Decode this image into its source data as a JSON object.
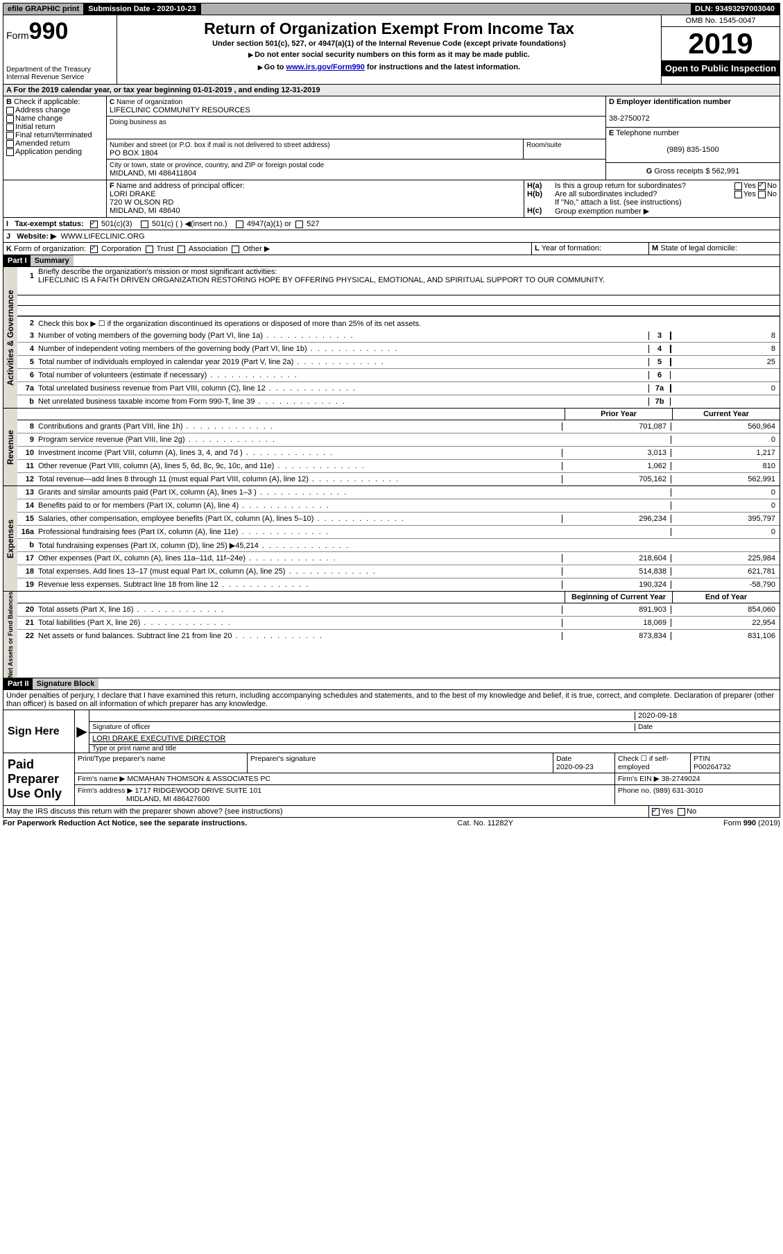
{
  "topbar": {
    "efile": "efile GRAPHIC print",
    "sub_label": "Submission Date - ",
    "sub_date": "2020-10-23",
    "dln_label": "DLN: ",
    "dln": "93493297003040"
  },
  "header": {
    "form_word": "Form",
    "form_num": "990",
    "dept1": "Department of the Treasury",
    "dept2": "Internal Revenue Service",
    "title": "Return of Organization Exempt From Income Tax",
    "subtitle": "Under section 501(c), 527, or 4947(a)(1) of the Internal Revenue Code (except private foundations)",
    "note1": "Do not enter social security numbers on this form as it may be made public.",
    "note2_pre": "Go to ",
    "note2_link": "www.irs.gov/Form990",
    "note2_post": " for instructions and the latest information.",
    "omb": "OMB No. 1545-0047",
    "year": "2019",
    "inspect": "Open to Public Inspection"
  },
  "A": {
    "text": "For the 2019 calendar year, or tax year beginning ",
    "begin": "01-01-2019",
    "mid": "  , and ending ",
    "end": "12-31-2019"
  },
  "B": {
    "label": "Check if applicable:",
    "opts": [
      "Address change",
      "Name change",
      "Initial return",
      "Final return/terminated",
      "Amended return",
      "Application pending"
    ]
  },
  "C": {
    "name_label": "Name of organization",
    "name": "LIFECLINIC COMMUNITY RESOURCES",
    "dba_label": "Doing business as",
    "addr_label": "Number and street (or P.O. box if mail is not delivered to street address)",
    "room_label": "Room/suite",
    "addr": "PO BOX 1804",
    "city_label": "City or town, state or province, country, and ZIP or foreign postal code",
    "city": "MIDLAND, MI  486411804"
  },
  "D": {
    "label": "Employer identification number",
    "val": "38-2750072"
  },
  "E": {
    "label": "Telephone number",
    "val": "(989) 835-1500"
  },
  "G": {
    "label": "Gross receipts $ ",
    "val": "562,991"
  },
  "F": {
    "label": "Name and address of principal officer:",
    "name": "LORI DRAKE",
    "addr1": "720 W OLSON RD",
    "addr2": "MIDLAND, MI  48640"
  },
  "H": {
    "a": "Is this a group return for subordinates?",
    "b": "Are all subordinates included?",
    "b_note": "If \"No,\" attach a list. (see instructions)",
    "c": "Group exemption number ▶",
    "yes": "Yes",
    "no": "No"
  },
  "I": {
    "label": "Tax-exempt status:",
    "o1": "501(c)(3)",
    "o2": "501(c) (  ) ◀(insert no.)",
    "o3": "4947(a)(1) or",
    "o4": "527"
  },
  "J": {
    "label": "Website: ▶",
    "val": "WWW.LIFECLINIC.ORG"
  },
  "K": {
    "label": "Form of organization:",
    "o1": "Corporation",
    "o2": "Trust",
    "o3": "Association",
    "o4": "Other ▶"
  },
  "L": {
    "label": "Year of formation:"
  },
  "M": {
    "label": "State of legal domicile:"
  },
  "part1": {
    "hdr": "Part I",
    "title": "Summary",
    "q1": "Briefly describe the organization's mission or most significant activities:",
    "mission": "LIFECLINIC IS A FAITH DRIVEN ORGANIZATION RESTORING HOPE BY OFFERING PHYSICAL, EMOTIONAL, AND SPIRITUAL SUPPORT TO OUR COMMUNITY.",
    "q2": "Check this box ▶ ☐ if the organization discontinued its operations or disposed of more than 25% of its net assets.",
    "tabs": {
      "gov": "Activities & Governance",
      "rev": "Revenue",
      "exp": "Expenses",
      "net": "Net Assets or Fund Balances"
    },
    "col_prior": "Prior Year",
    "col_curr": "Current Year",
    "col_begin": "Beginning of Current Year",
    "col_end": "End of Year",
    "lines_gov": [
      {
        "n": "3",
        "d": "Number of voting members of the governing body (Part VI, line 1a)",
        "box": "3",
        "v": "8"
      },
      {
        "n": "4",
        "d": "Number of independent voting members of the governing body (Part VI, line 1b)",
        "box": "4",
        "v": "8"
      },
      {
        "n": "5",
        "d": "Total number of individuals employed in calendar year 2019 (Part V, line 2a)",
        "box": "5",
        "v": "25"
      },
      {
        "n": "6",
        "d": "Total number of volunteers (estimate if necessary)",
        "box": "6",
        "v": ""
      },
      {
        "n": "7a",
        "d": "Total unrelated business revenue from Part VIII, column (C), line 12",
        "box": "7a",
        "v": "0"
      },
      {
        "n": "b",
        "d": "Net unrelated business taxable income from Form 990-T, line 39",
        "box": "7b",
        "v": ""
      }
    ],
    "lines_rev": [
      {
        "n": "8",
        "d": "Contributions and grants (Part VIII, line 1h)",
        "p": "701,087",
        "c": "560,964"
      },
      {
        "n": "9",
        "d": "Program service revenue (Part VIII, line 2g)",
        "p": "",
        "c": "0"
      },
      {
        "n": "10",
        "d": "Investment income (Part VIII, column (A), lines 3, 4, and 7d )",
        "p": "3,013",
        "c": "1,217"
      },
      {
        "n": "11",
        "d": "Other revenue (Part VIII, column (A), lines 5, 6d, 8c, 9c, 10c, and 11e)",
        "p": "1,062",
        "c": "810"
      },
      {
        "n": "12",
        "d": "Total revenue—add lines 8 through 11 (must equal Part VIII, column (A), line 12)",
        "p": "705,162",
        "c": "562,991"
      }
    ],
    "lines_exp": [
      {
        "n": "13",
        "d": "Grants and similar amounts paid (Part IX, column (A), lines 1–3 )",
        "p": "",
        "c": "0"
      },
      {
        "n": "14",
        "d": "Benefits paid to or for members (Part IX, column (A), line 4)",
        "p": "",
        "c": "0"
      },
      {
        "n": "15",
        "d": "Salaries, other compensation, employee benefits (Part IX, column (A), lines 5–10)",
        "p": "296,234",
        "c": "395,797"
      },
      {
        "n": "16a",
        "d": "Professional fundraising fees (Part IX, column (A), line 11e)",
        "p": "",
        "c": "0"
      },
      {
        "n": "b",
        "d": "Total fundraising expenses (Part IX, column (D), line 25) ▶45,214",
        "p": "GREY",
        "c": "GREY"
      },
      {
        "n": "17",
        "d": "Other expenses (Part IX, column (A), lines 11a–11d, 11f–24e)",
        "p": "218,604",
        "c": "225,984"
      },
      {
        "n": "18",
        "d": "Total expenses. Add lines 13–17 (must equal Part IX, column (A), line 25)",
        "p": "514,838",
        "c": "621,781"
      },
      {
        "n": "19",
        "d": "Revenue less expenses. Subtract line 18 from line 12",
        "p": "190,324",
        "c": "-58,790"
      }
    ],
    "lines_net": [
      {
        "n": "20",
        "d": "Total assets (Part X, line 16)",
        "p": "891,903",
        "c": "854,060"
      },
      {
        "n": "21",
        "d": "Total liabilities (Part X, line 26)",
        "p": "18,069",
        "c": "22,954"
      },
      {
        "n": "22",
        "d": "Net assets or fund balances. Subtract line 21 from line 20",
        "p": "873,834",
        "c": "831,106"
      }
    ]
  },
  "part2": {
    "hdr": "Part II",
    "title": "Signature Block",
    "decl": "Under penalties of perjury, I declare that I have examined this return, including accompanying schedules and statements, and to the best of my knowledge and belief, it is true, correct, and complete. Declaration of preparer (other than officer) is based on all information of which preparer has any knowledge.",
    "sign_here": "Sign Here",
    "sig_officer": "Signature of officer",
    "date": "Date",
    "sig_date": "2020-09-18",
    "name_title": "LORI DRAKE  EXECUTIVE DIRECTOR",
    "name_title_label": "Type or print name and title",
    "paid": "Paid Preparer Use Only",
    "p_name_label": "Print/Type preparer's name",
    "p_sig_label": "Preparer's signature",
    "p_date_label": "Date",
    "p_date": "2020-09-23",
    "p_check": "Check ☐ if self-employed",
    "ptin_label": "PTIN",
    "ptin": "P00264732",
    "firm_name_label": "Firm's name    ▶",
    "firm_name": "MCMAHAN THOMSON & ASSOCIATES PC",
    "firm_ein_label": "Firm's EIN ▶",
    "firm_ein": "38-2749024",
    "firm_addr_label": "Firm's address ▶",
    "firm_addr1": "1717 RIDGEWOOD DRIVE SUITE 101",
    "firm_addr2": "MIDLAND, MI  486427600",
    "phone_label": "Phone no.",
    "phone": "(989) 631-3010",
    "discuss": "May the IRS discuss this return with the preparer shown above? (see instructions)"
  },
  "footer": {
    "left": "For Paperwork Reduction Act Notice, see the separate instructions.",
    "mid": "Cat. No. 11282Y",
    "right": "Form 990 (2019)"
  }
}
